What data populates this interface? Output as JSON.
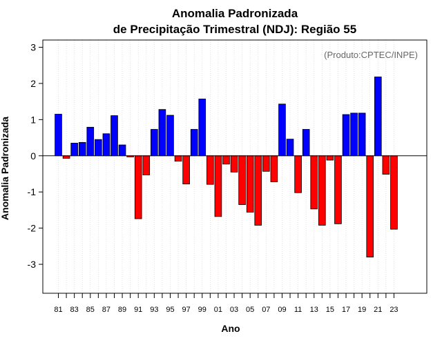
{
  "chart_data": {
    "type": "bar",
    "title": "Anomalia Padronizada",
    "subtitle": "de Precipitação Trimestral (NDJ): Região 55",
    "xlabel": "Ano",
    "ylabel": "Anomalia Padronizada",
    "annotation": "(Produto:CPTEC/INPE)",
    "ylim": [
      -3.8,
      3.2
    ],
    "yticks": [
      -3,
      -2,
      -1,
      0,
      1,
      2,
      3
    ],
    "ytick_labels": [
      "-3",
      "-2",
      "-1",
      "0",
      "1",
      "2",
      "3"
    ],
    "xtick_labels": [
      "81",
      "83",
      "85",
      "87",
      "89",
      "91",
      "93",
      "95",
      "97",
      "99",
      "01",
      "03",
      "05",
      "07",
      "09",
      "11",
      "13",
      "15",
      "17",
      "19",
      "21",
      "23"
    ],
    "categories": [
      "81",
      "82",
      "83",
      "84",
      "85",
      "86",
      "87",
      "88",
      "89",
      "90",
      "91",
      "92",
      "93",
      "94",
      "95",
      "96",
      "97",
      "98",
      "99",
      "00",
      "01",
      "02",
      "03",
      "04",
      "05",
      "06",
      "07",
      "08",
      "09",
      "10",
      "11",
      "12",
      "13",
      "14",
      "15",
      "16",
      "17",
      "18",
      "19",
      "20",
      "21",
      "22",
      "23"
    ],
    "values": [
      1.15,
      -0.07,
      0.35,
      0.37,
      0.79,
      0.45,
      0.61,
      1.11,
      0.3,
      -0.03,
      -1.74,
      -0.53,
      0.73,
      1.28,
      1.12,
      -0.15,
      -0.78,
      0.73,
      1.57,
      -0.79,
      -1.68,
      -0.23,
      -0.45,
      -1.35,
      -1.56,
      -1.92,
      -0.43,
      -0.72,
      1.43,
      0.46,
      -1.02,
      0.73,
      -1.47,
      -1.92,
      -0.12,
      -1.88,
      1.14,
      1.18,
      1.18,
      -2.8,
      2.18,
      -0.51,
      -2.03
    ],
    "colors": {
      "positive": "#0000ff",
      "negative": "#ff0000",
      "grid": "#cccccc",
      "axis": "#000000"
    },
    "grid": true
  }
}
